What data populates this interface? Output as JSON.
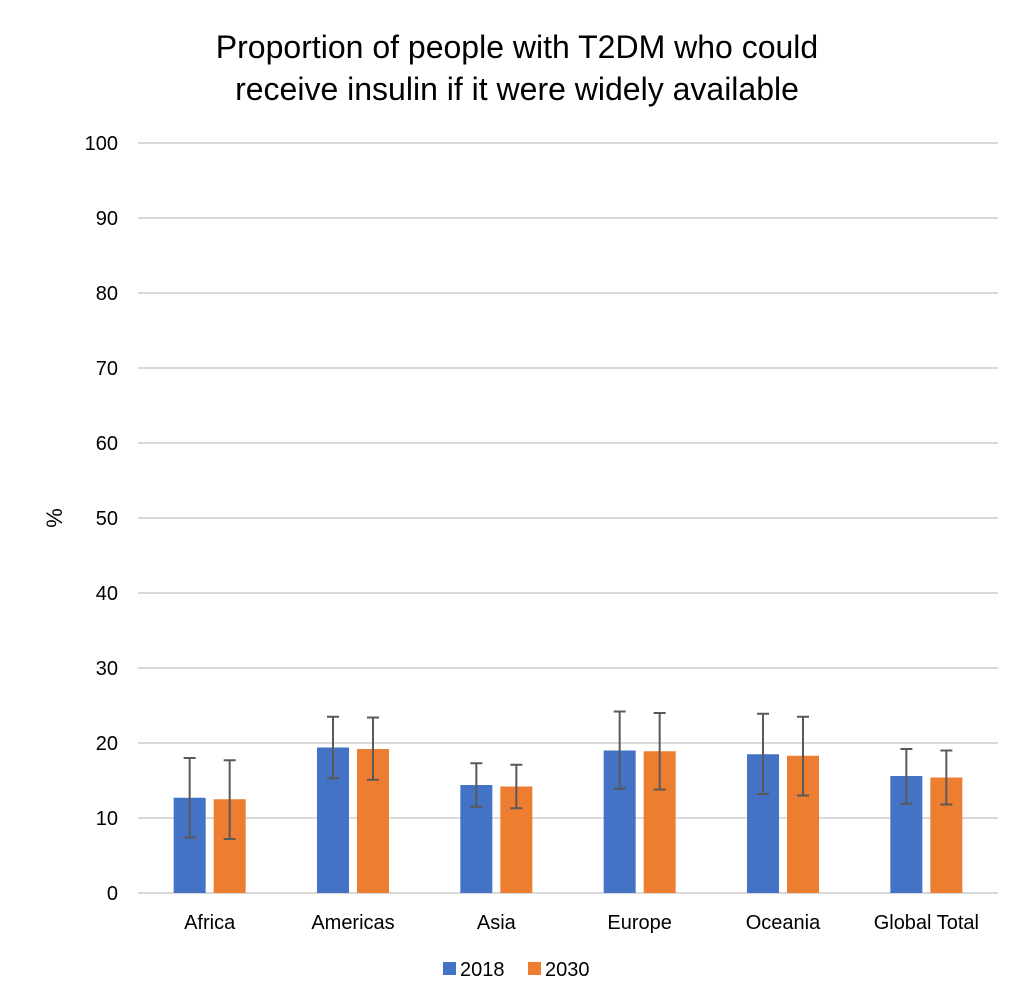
{
  "chart_data": {
    "type": "bar",
    "title_lines": [
      "Proportion of people with T2DM who could",
      "receive insulin if it were widely available"
    ],
    "xlabel": "",
    "ylabel": "%",
    "ylim": [
      0,
      100
    ],
    "yticks": [
      0,
      10,
      20,
      30,
      40,
      50,
      60,
      70,
      80,
      90,
      100
    ],
    "grid": true,
    "legend_position": "bottom",
    "categories": [
      "Africa",
      "Americas",
      "Asia",
      "Europe",
      "Oceania",
      "Global Total"
    ],
    "series": [
      {
        "name": "2018",
        "color": "#4472C4",
        "values": [
          12.7,
          19.4,
          14.4,
          19.0,
          18.5,
          15.6
        ],
        "error_low": [
          7.4,
          15.3,
          11.5,
          13.9,
          13.2,
          11.9
        ],
        "error_high": [
          18.0,
          23.5,
          17.3,
          24.2,
          23.9,
          19.2
        ]
      },
      {
        "name": "2030",
        "color": "#ED7D31",
        "values": [
          12.5,
          19.2,
          14.2,
          18.9,
          18.3,
          15.4
        ],
        "error_low": [
          7.2,
          15.1,
          11.3,
          13.8,
          13.0,
          11.8
        ],
        "error_high": [
          17.7,
          23.4,
          17.1,
          24.0,
          23.5,
          19.0
        ]
      }
    ]
  }
}
